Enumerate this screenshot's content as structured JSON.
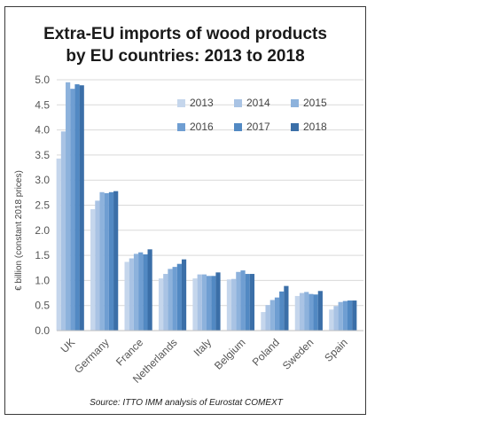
{
  "chart_data": {
    "type": "bar",
    "title_line1": "Extra-EU imports of wood products",
    "title_line2": "by EU countries: 2013 to 2018",
    "ylabel": "€ billion (constant 2018 prices)",
    "xlabel": "",
    "source": "Source: ITTO IMM analysis of Eurostat COMEXT",
    "ylim": [
      0,
      5
    ],
    "yticks": [
      "0.0",
      "0.5",
      "1.0",
      "1.5",
      "2.0",
      "2.5",
      "3.0",
      "3.5",
      "4.0",
      "4.5",
      "5.0"
    ],
    "grid": true,
    "legend_position": "top-right",
    "categories": [
      "UK",
      "Germany",
      "France",
      "Netherlands",
      "Italy",
      "Belgium",
      "Poland",
      "Sweden",
      "Spain"
    ],
    "series": [
      {
        "name": "2013",
        "color": "#c5d6ec",
        "values": [
          3.43,
          2.42,
          1.37,
          1.04,
          1.04,
          1.02,
          0.37,
          0.69,
          0.42
        ]
      },
      {
        "name": "2014",
        "color": "#a9c3e4",
        "values": [
          3.97,
          2.59,
          1.44,
          1.13,
          1.12,
          1.03,
          0.51,
          0.75,
          0.49
        ]
      },
      {
        "name": "2015",
        "color": "#8db2dc",
        "values": [
          4.95,
          2.76,
          1.53,
          1.23,
          1.12,
          1.17,
          0.61,
          0.77,
          0.57
        ]
      },
      {
        "name": "2016",
        "color": "#6f9ed2",
        "values": [
          4.82,
          2.74,
          1.56,
          1.27,
          1.09,
          1.2,
          0.66,
          0.73,
          0.59
        ]
      },
      {
        "name": "2017",
        "color": "#5289c3",
        "values": [
          4.91,
          2.76,
          1.52,
          1.33,
          1.09,
          1.13,
          0.78,
          0.72,
          0.6
        ]
      },
      {
        "name": "2018",
        "color": "#3b6fa8",
        "values": [
          4.89,
          2.78,
          1.62,
          1.42,
          1.16,
          1.13,
          0.89,
          0.79,
          0.6
        ]
      }
    ]
  }
}
